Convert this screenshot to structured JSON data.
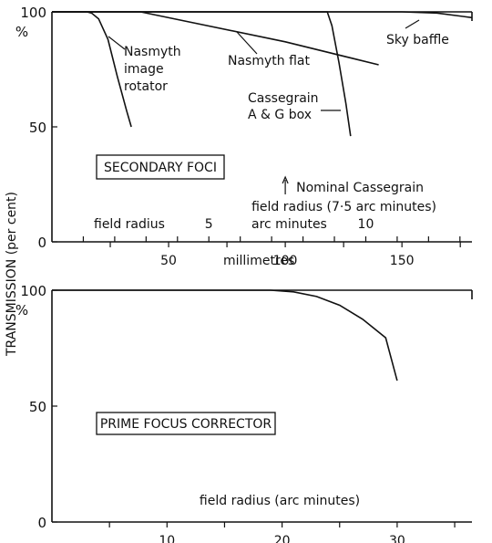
{
  "ylabel": "TRANSMISSION (per cent)",
  "chart_data": [
    {
      "type": "line",
      "title": "SECONDARY FOCI",
      "xlabel": "millimetres",
      "xlim": [
        0,
        180
      ],
      "ylim": [
        0,
        100
      ],
      "y_unit": "%",
      "x_ticks": [
        50,
        100,
        150
      ],
      "y_ticks": [
        0,
        50,
        100
      ],
      "secondary_axis": {
        "label_prefix": "field radius",
        "label_suffix": "arc minutes",
        "ticks": [
          5,
          10
        ],
        "mm_per_arcmin": 13.45
      },
      "series": [
        {
          "name": "Nasmyth image rotator",
          "label_lines": [
            "Nasmyth",
            "image",
            "rotator"
          ],
          "x": [
            0,
            15,
            17,
            20,
            24,
            28,
            32,
            34
          ],
          "y": [
            100,
            100,
            99.5,
            97,
            88,
            72,
            57,
            50
          ]
        },
        {
          "name": "Nasmyth flat",
          "label_lines": [
            "Nasmyth flat"
          ],
          "x": [
            0,
            38,
            100,
            140
          ],
          "y": [
            100,
            100,
            87,
            77
          ]
        },
        {
          "name": "Cassegrain A & G box",
          "label_lines": [
            "Cassegrain",
            "A & G box"
          ],
          "x": [
            0,
            118,
            120,
            123,
            126,
            128
          ],
          "y": [
            100,
            100,
            94,
            78,
            60,
            46
          ]
        },
        {
          "name": "Sky baffle",
          "label_lines": [
            "Sky baffle"
          ],
          "x": [
            0,
            150,
            165,
            180
          ],
          "y": [
            100,
            100,
            99.5,
            97.5
          ]
        }
      ],
      "annotation": {
        "x": 100,
        "lines": [
          "Nominal Cassegrain",
          "field radius (7·5 arc minutes)"
        ]
      }
    },
    {
      "type": "line",
      "title": "PRIME FOCUS CORRECTOR",
      "xlabel": "field radius (arc minutes)",
      "xlim": [
        0,
        36.5
      ],
      "ylim": [
        0,
        100
      ],
      "y_unit": "%",
      "x_ticks": [
        10,
        20,
        30
      ],
      "y_ticks": [
        0,
        50,
        100
      ],
      "series": [
        {
          "name": "Prime focus corrector",
          "x": [
            0,
            19,
            21,
            23,
            25,
            27,
            29,
            30
          ],
          "y": [
            100,
            100,
            99.3,
            97.3,
            93.5,
            87.5,
            79.5,
            61
          ]
        }
      ]
    }
  ]
}
